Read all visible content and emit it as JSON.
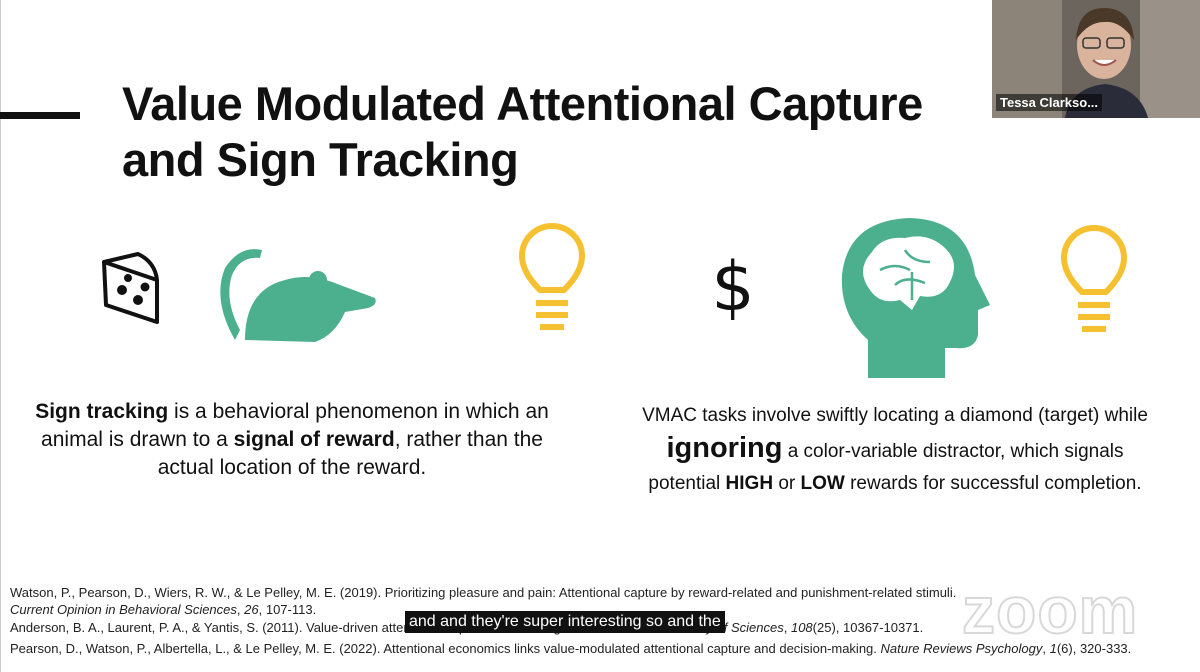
{
  "slide": {
    "title_lines": [
      "Value Modulated Attentional Capture",
      "and Sign Tracking"
    ],
    "dollar_icon": "$",
    "left_text": [
      {
        "text": "Sign tracking",
        "style": "b"
      },
      {
        "text": " is a behavioral phenomenon in which an animal is drawn to a "
      },
      {
        "text": "signal of reward",
        "style": "b"
      },
      {
        "text": ", rather than the actual location of the reward."
      }
    ],
    "right_text": [
      {
        "text": "VMAC tasks involve swiftly locating a diamond (target) while "
      },
      {
        "text": "ignoring",
        "style": "big"
      },
      {
        "text": " a color-variable distractor, which signals potential "
      },
      {
        "text": "HIGH",
        "style": "b"
      },
      {
        "text": " or "
      },
      {
        "text": "LOW",
        "style": "b"
      },
      {
        "text": " rewards for successful completion."
      }
    ],
    "references": [
      [
        {
          "text": "Watson, P., Pearson, D., Wiers, R. W., & Le Pelley, M. E. (2019). Prioritizing pleasure and pain: Attentional capture by reward-related and punishment-related stimuli. "
        },
        {
          "text": "Current Opinion in Behavioral Sciences",
          "style": "i"
        },
        {
          "text": ", "
        },
        {
          "text": "26",
          "style": "i"
        },
        {
          "text": ", 107-113."
        }
      ],
      [
        {
          "text": "Anderson, B. A., Laurent, P. A., & Yantis, S. (2011). Value-driven attentional capture. "
        },
        {
          "text": "Proceedings of the National Academy of Sciences",
          "style": "i"
        },
        {
          "text": ", "
        },
        {
          "text": "108",
          "style": "i"
        },
        {
          "text": "(25), 10367-10371."
        }
      ],
      [
        {
          "text": "Pearson, D., Watson, P., Albertella, L., & Le Pelley, M. E. (2022). Attentional economics links value-modulated attentional capture and decision-making. "
        },
        {
          "text": "Nature Reviews Psychology",
          "style": "i"
        },
        {
          "text": ", "
        },
        {
          "text": "1",
          "style": "i"
        },
        {
          "text": "(6), 320-333."
        }
      ]
    ]
  },
  "meeting": {
    "participant_name": "Tessa Clarkso...",
    "caption": "and and they're super interesting so and the",
    "watermark": "zoom"
  }
}
